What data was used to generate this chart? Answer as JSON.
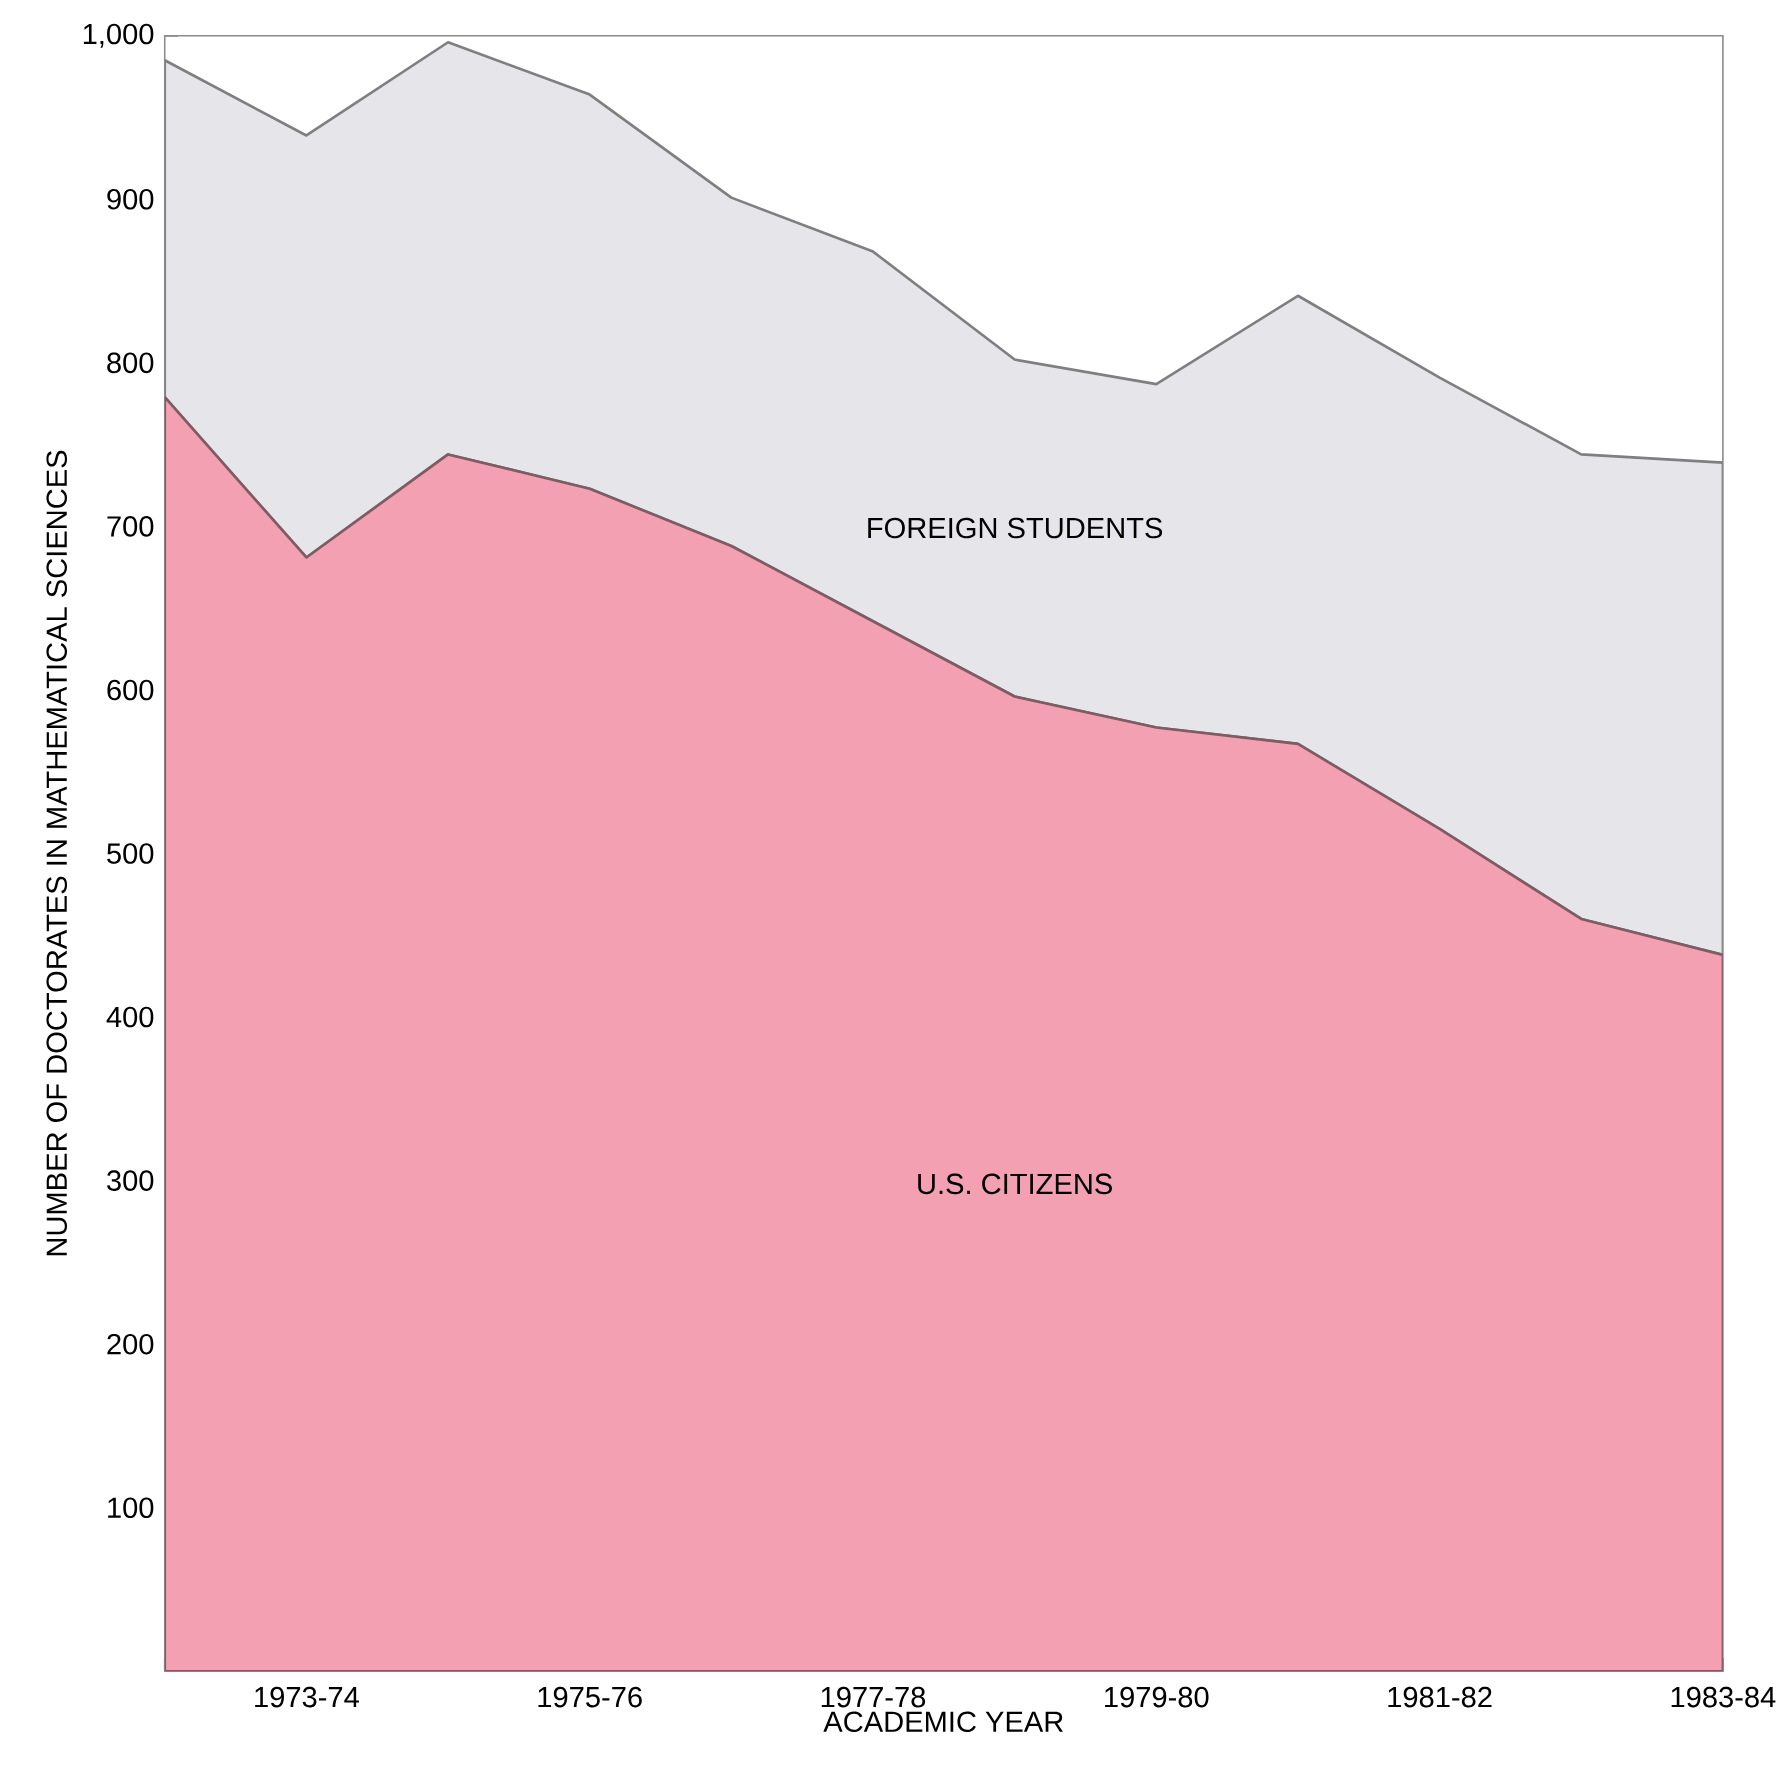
{
  "chart_data": {
    "type": "area",
    "stacked": true,
    "xlabel": "ACADEMIC YEAR",
    "ylabel": "NUMBER OF DOCTORATES IN MATHEMATICAL SCIENCES",
    "categories": [
      null,
      "1973-74",
      null,
      "1975-76",
      null,
      "1977-78",
      null,
      "1979-80",
      null,
      "1981-82",
      null,
      "1983-84"
    ],
    "series": [
      {
        "name": "U.S. CITIZENS",
        "color": "#f2a0b2",
        "values": [
          779,
          681,
          744,
          723,
          688,
          642,
          596,
          577,
          567,
          515,
          460,
          438
        ]
      },
      {
        "name": "FOREIGN STUDENTS",
        "color": "#e6e6ea",
        "values": [
          206,
          258,
          252,
          241,
          213,
          226,
          206,
          210,
          274,
          276,
          284,
          301
        ]
      }
    ],
    "ylim": [
      0,
      1000
    ],
    "yticks": [
      100,
      200,
      300,
      400,
      500,
      600,
      700,
      800,
      900,
      {
        "value": 1000,
        "label": "1,000"
      }
    ]
  }
}
